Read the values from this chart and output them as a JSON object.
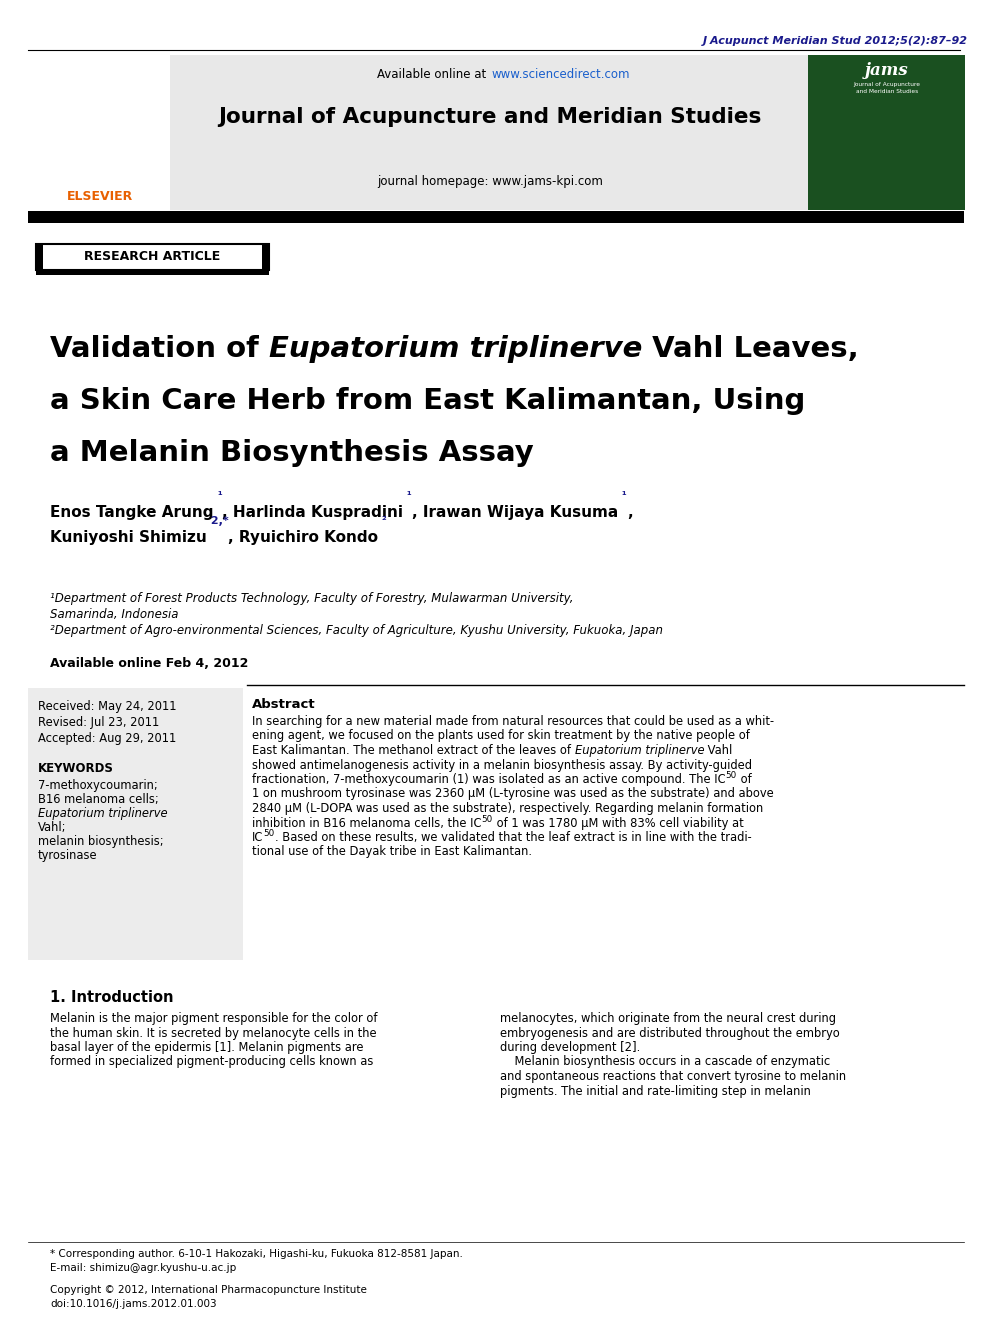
{
  "journal_ref": "J Acupunct Meridian Stud 2012;5(2):87–92",
  "journal_name": "Journal of Acupuncture and Meridian Studies",
  "sciencedirect_url": "www.sciencedirect.com",
  "journal_homepage": "journal homepage: www.jams-kpi.com",
  "article_type": "RESEARCH ARTICLE",
  "affil1": "¹Department of Forest Products Technology, Faculty of Forestry, Mulawarman University,",
  "affil1b": "Samarinda, Indonesia",
  "affil2": "²Department of Agro-environmental Sciences, Faculty of Agriculture, Kyushu University, Fukuoka, Japan",
  "available_online": "Available online Feb 4, 2012",
  "received": "Received: May 24, 2011",
  "revised": "Revised: Jul 23, 2011",
  "accepted": "Accepted: Aug 29, 2011",
  "keywords_title": "KEYWORDS",
  "kw1": "7-methoxycoumarin;",
  "kw2": "B16 melanoma cells;",
  "kw3i": "Eupatorium triplinerve",
  "kw4": "Vahl;",
  "kw5": "melanin biosynthesis;",
  "kw6": "tyrosinase",
  "abstract_title": "Abstract",
  "abs1": "In searching for a new material made from natural resources that could be used as a whit-",
  "abs2": "ening agent, we focused on the plants used for skin treatment by the native people of",
  "abs3a": "East Kalimantan. The methanol extract of the leaves of ",
  "abs3b": "Eupatorium triplinerve",
  "abs3c": " Vahl",
  "abs4": "showed antimelanogenesis activity in a melanin biosynthesis assay. By activity-guided",
  "abs5": "fractionation, 7-methoxycoumarin (1) was isolated as an active compound. The IC",
  "abs5sub": "50",
  "abs5e": " of",
  "abs6": "1 on mushroom tyrosinase was 2360 μM (L-tyrosine was used as the substrate) and above",
  "abs7": "2840 μM (L-DOPA was used as the substrate), respectively. Regarding melanin formation",
  "abs8": "inhibition in B16 melanoma cells, the IC",
  "abs8sub": "50",
  "abs8e": " of 1 was 1780 μM with 83% cell viability at",
  "abs9": "IC",
  "abs9sub": "50",
  "abs9e": ". Based on these results, we validated that the leaf extract is in line with the tradi-",
  "abs10": "tional use of the Dayak tribe in East Kalimantan.",
  "intro_title": "1. Introduction",
  "ic1l1": "Melanin is the major pigment responsible for the color of",
  "ic1l2": "the human skin. It is secreted by melanocyte cells in the",
  "ic1l3": "basal layer of the epidermis [1]. Melanin pigments are",
  "ic1l4": "formed in specialized pigment-producing cells known as",
  "ic2l1": "melanocytes, which originate from the neural crest during",
  "ic2l2": "embryogenesis and are distributed throughout the embryo",
  "ic2l3": "during development [2].",
  "ic2l4": "    Melanin biosynthesis occurs in a cascade of enzymatic",
  "ic2l5": "and spontaneous reactions that convert tyrosine to melanin",
  "ic2l6": "pigments. The initial and rate-limiting step in melanin",
  "footnote1": "* Corresponding author. 6-10-1 Hakozaki, Higashi-ku, Fukuoka 812-8581 Japan.",
  "footnote2": "E-mail: shimizu@agr.kyushu-u.ac.jp",
  "copyright": "Copyright © 2012, International Pharmacopuncture Institute",
  "doi": "doi:10.1016/j.jams.2012.01.003",
  "bg": "#ffffff",
  "header_bg": "#e8e8e8",
  "sidebar_bg": "#ececec",
  "ref_color": "#1a1a8c",
  "sci_url_color": "#1a5fcc",
  "elsevier_color": "#e86000",
  "jams_bg": "#1a5020",
  "jams_text": "#ffffff",
  "black": "#000000"
}
